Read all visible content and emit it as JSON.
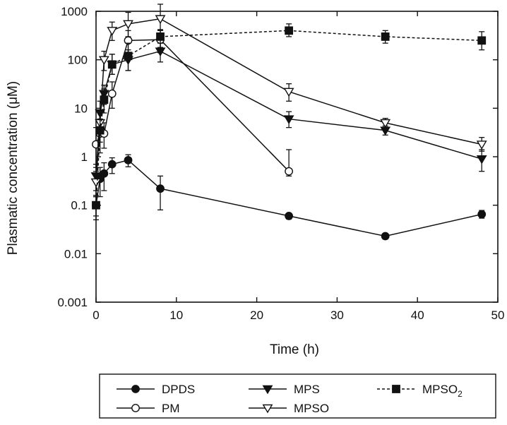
{
  "chart_data": {
    "type": "line",
    "title": "",
    "xlabel": "Time (h)",
    "ylabel": "Plasmatic concentration (μM)",
    "xlim": [
      0,
      50
    ],
    "ylim": [
      0.001,
      1000
    ],
    "yscale": "log",
    "grid": false,
    "legend_position": "bottom",
    "x_ticks": [
      {
        "value": 0,
        "label": "0"
      },
      {
        "value": 10,
        "label": "10"
      },
      {
        "value": 20,
        "label": "20"
      },
      {
        "value": 30,
        "label": "30"
      },
      {
        "value": 40,
        "label": "40"
      },
      {
        "value": 50,
        "label": "50"
      }
    ],
    "y_ticks": [
      {
        "value": 1000,
        "label": "1000"
      },
      {
        "value": 100,
        "label": "100"
      },
      {
        "value": 10,
        "label": "10"
      },
      {
        "value": 1,
        "label": "1"
      },
      {
        "value": 0.1,
        "label": "0.1"
      },
      {
        "value": 0.01,
        "label": "0.01"
      },
      {
        "value": 0.001,
        "label": "0.001"
      }
    ],
    "series": [
      {
        "name": "DPDS",
        "marker": "filled-circle",
        "line_style": "solid",
        "x": [
          0,
          0.5,
          1,
          2,
          4,
          8,
          24,
          36,
          48
        ],
        "y": [
          0.1,
          0.35,
          0.45,
          0.7,
          0.85,
          0.22,
          0.06,
          0.023,
          0.065
        ],
        "err_lo": [
          0.05,
          0.15,
          0.2,
          0.45,
          0.62,
          0.08,
          0.052,
          0.02,
          0.054
        ],
        "err_hi": [
          0.15,
          0.6,
          0.75,
          0.95,
          1.1,
          0.4,
          0.068,
          0.026,
          0.078
        ]
      },
      {
        "name": "PM",
        "marker": "open-circle",
        "line_style": "solid",
        "x": [
          0,
          0.5,
          1,
          2,
          4,
          8,
          24
        ],
        "y": [
          1.8,
          3,
          3,
          20,
          250,
          260,
          0.5
        ],
        "err_lo": [
          0.6,
          1.2,
          1.5,
          10,
          120,
          140,
          0.4
        ],
        "err_hi": [
          4,
          6,
          5,
          35,
          400,
          400,
          1.4
        ]
      },
      {
        "name": "MPS",
        "marker": "filled-triangle-down",
        "line_style": "solid",
        "x": [
          0,
          0.5,
          1,
          2,
          4,
          8,
          24,
          36,
          48
        ],
        "y": [
          0.4,
          8,
          20,
          80,
          100,
          150,
          6,
          3.5,
          0.9
        ],
        "err_lo": [
          0.2,
          5,
          12,
          50,
          60,
          90,
          4,
          2.8,
          0.5
        ],
        "err_hi": [
          0.7,
          14,
          30,
          130,
          160,
          220,
          8.5,
          4.3,
          1.4
        ]
      },
      {
        "name": "MPSO",
        "marker": "open-triangle-down",
        "line_style": "solid",
        "x": [
          0,
          0.5,
          1,
          2,
          4,
          8,
          24,
          36,
          48
        ],
        "y": [
          0.3,
          5,
          100,
          400,
          550,
          700,
          22,
          5,
          1.8
        ],
        "err_lo": [
          0.15,
          3,
          60,
          250,
          300,
          400,
          14,
          4,
          1.3
        ],
        "err_hi": [
          0.5,
          8,
          150,
          600,
          950,
          1400,
          32,
          6.2,
          2.5
        ]
      },
      {
        "name": "MPSO2",
        "name_main": "MPSO",
        "name_sub": "2",
        "marker": "filled-square",
        "line_style": "dashed",
        "x": [
          0,
          0.5,
          1,
          2,
          4,
          8,
          24,
          36,
          48
        ],
        "y": [
          0.1,
          3.5,
          15,
          80,
          120,
          300,
          400,
          300,
          250
        ],
        "err_lo": [
          0.06,
          2,
          8,
          50,
          60,
          180,
          300,
          220,
          160
        ],
        "err_hi": [
          0.16,
          6,
          25,
          130,
          220,
          420,
          550,
          400,
          380
        ]
      }
    ]
  }
}
